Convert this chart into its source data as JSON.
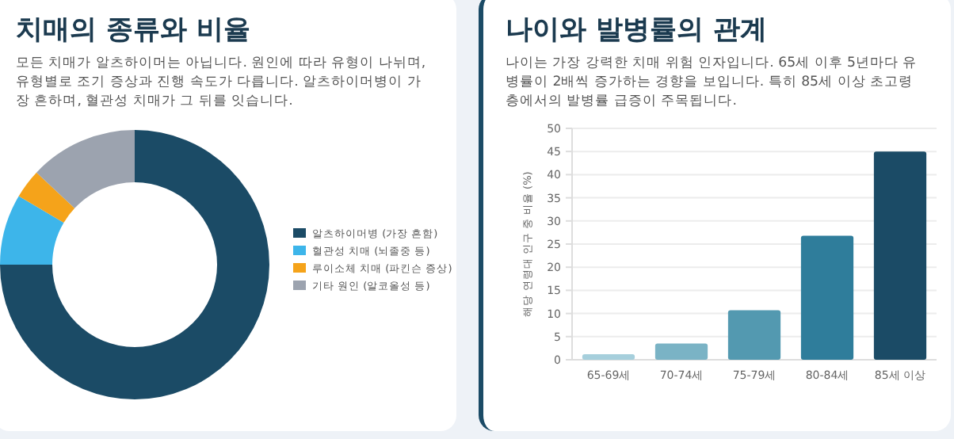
{
  "chart_data": [
    {
      "type": "donut",
      "title": "치매의 종류와 비율",
      "subtitle": "모든 치매가 알츠하이머는 아닙니다. 원인에 따라 유형이 나뉘며, 유형별로 조기 증상과 진행 속도가 다릅니다. 알츠하이머병이 가장 흔하며, 혈관성 치매가 그 뒤를 잇습니다.",
      "categories": [
        "알츠하이머병 (가장 흔함)",
        "혈관성 치매 (뇌졸중 등)",
        "루이소체 치매 (파킨슨 증상)",
        "기타 원인 (알코올성 등)"
      ],
      "values": [
        75,
        8.5,
        3.5,
        13
      ],
      "colors": [
        "#1b4b66",
        "#3db5ea",
        "#f5a31a",
        "#9ca3af"
      ],
      "legend": "right"
    },
    {
      "type": "bar",
      "title": "나이와 발병률의 관계",
      "subtitle": "나이는 가장 강력한 치매 위험 인자입니다. 65세 이후 5년마다 유병률이 2배씩 증가하는 경향을 보입니다. 특히 85세 이상 초고령층에서의 발병률 급증이 주목됩니다.",
      "ylabel": "해당 연령대 인구 중 비율 (%)",
      "categories": [
        "65-69세",
        "70-74세",
        "75-79세",
        "80-84세",
        "85세 이상"
      ],
      "values": [
        1.2,
        3.5,
        10.7,
        26.8,
        45
      ],
      "colors": [
        "#a6cfdc",
        "#7ab3c5",
        "#5399b0",
        "#2f7d9b",
        "#1b4b66"
      ],
      "ylim": [
        0,
        50
      ],
      "yticks": [
        0,
        5,
        10,
        15,
        20,
        25,
        30,
        35,
        40,
        45,
        50
      ],
      "grid": "y"
    }
  ]
}
